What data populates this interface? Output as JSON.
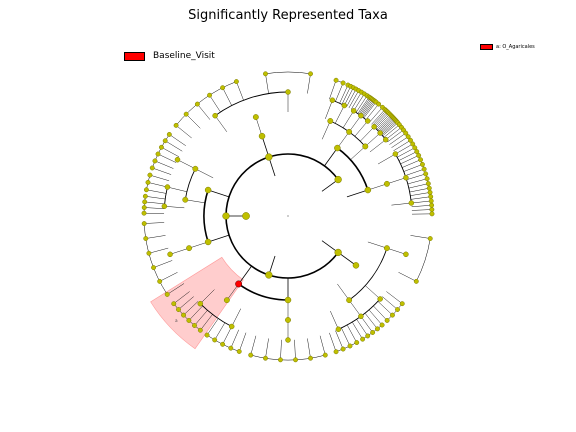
{
  "chart_data": {
    "type": "cladogram",
    "title": "Significantly Represented Taxa",
    "classes": [
      {
        "name": "Baseline_Visit",
        "color": "#ff0000"
      }
    ],
    "background_node_color": "#bfbf00",
    "highlight_color": "#ffc0c0",
    "ring_levels": 6,
    "significant_clades": [
      {
        "marker": "a",
        "label": "a: O_Agaricales",
        "class": "Baseline_Visit",
        "level": 3
      }
    ]
  }
}
